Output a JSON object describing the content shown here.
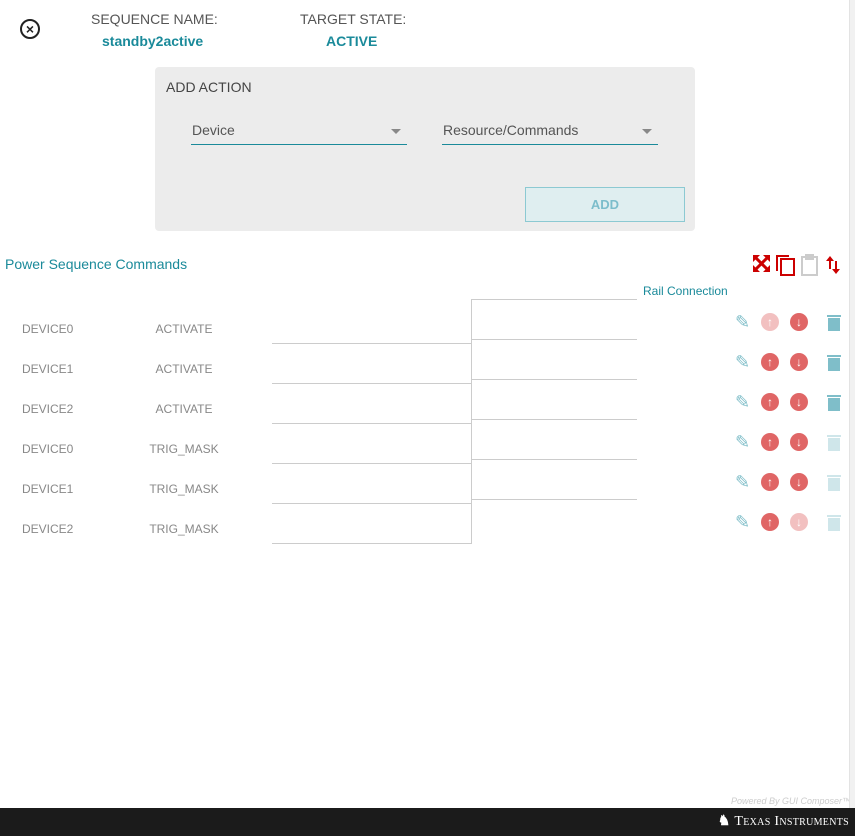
{
  "header": {
    "sequence_name_label": "SEQUENCE NAME:",
    "sequence_name": "standby2active",
    "target_state_label": "TARGET STATE:",
    "target_state": "ACTIVE"
  },
  "add_action": {
    "title": "ADD ACTION",
    "device_placeholder": "Device",
    "resource_placeholder": "Resource/Commands",
    "add_label": "ADD"
  },
  "commands": {
    "title": "Power Sequence Commands",
    "rail_connection_label": "Rail Connection",
    "rows": [
      {
        "device": "DEVICE0",
        "command": "ACTIVATE",
        "up_enabled": false,
        "down_enabled": true,
        "delete_enabled": true
      },
      {
        "device": "DEVICE1",
        "command": "ACTIVATE",
        "up_enabled": true,
        "down_enabled": true,
        "delete_enabled": true
      },
      {
        "device": "DEVICE2",
        "command": "ACTIVATE",
        "up_enabled": true,
        "down_enabled": true,
        "delete_enabled": true
      },
      {
        "device": "DEVICE0",
        "command": "TRIG_MASK",
        "up_enabled": true,
        "down_enabled": true,
        "delete_enabled": false
      },
      {
        "device": "DEVICE1",
        "command": "TRIG_MASK",
        "up_enabled": true,
        "down_enabled": true,
        "delete_enabled": false
      },
      {
        "device": "DEVICE2",
        "command": "TRIG_MASK",
        "up_enabled": true,
        "down_enabled": false,
        "delete_enabled": false
      }
    ]
  },
  "footer": {
    "powered_by": "Powered By GUI Composer™",
    "brand": "Texas Instruments"
  },
  "colors": {
    "accent": "#1a8a9a",
    "red": "#cc0000",
    "arrow": "#e06666",
    "teal_icon": "#7fbec9"
  }
}
